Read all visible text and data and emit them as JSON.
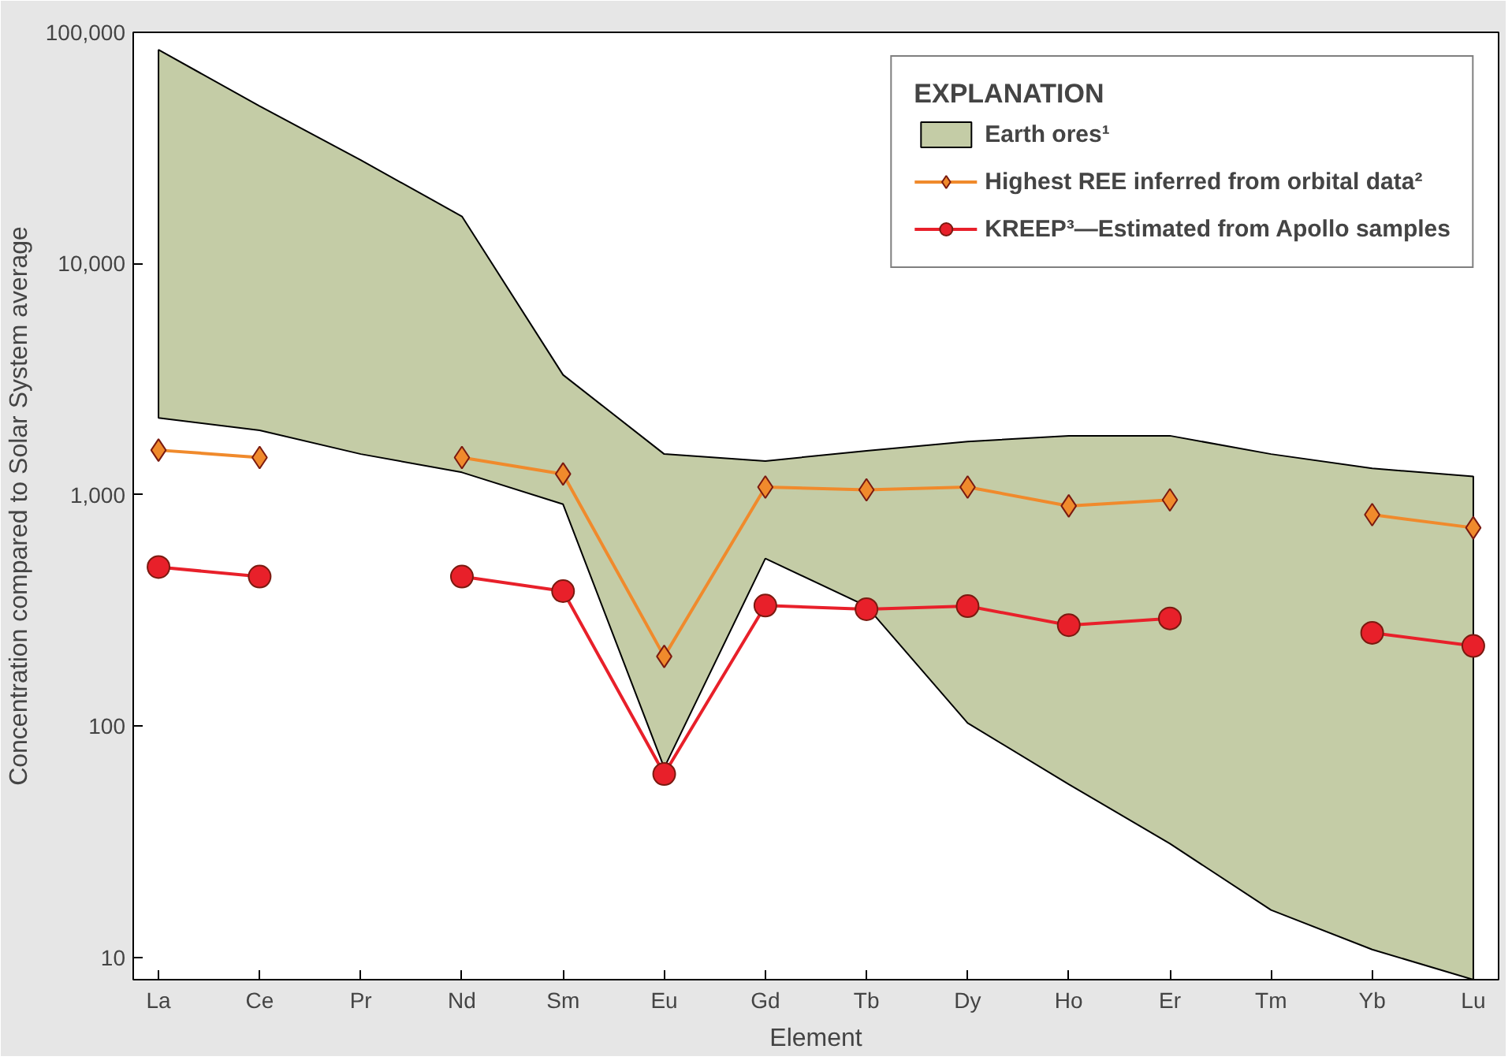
{
  "chart_data": {
    "xlabel": "Element",
    "ylabel": "Concentration compared to Solar System average",
    "legend_title": "EXPLANATION",
    "legend": "top right",
    "grid": false,
    "log": "y",
    "ylim": [
      8,
      100000
    ],
    "type": "line",
    "yticks": [
      {
        "value": 10,
        "label": "10"
      },
      {
        "value": 100,
        "label": "100"
      },
      {
        "value": 1000,
        "label": "1,000"
      },
      {
        "value": 10000,
        "label": "10,000"
      },
      {
        "value": 100000,
        "label": "100,000"
      }
    ],
    "categories": [
      "La",
      "Ce",
      "Pr",
      "Nd",
      "Sm",
      "Eu",
      "Gd",
      "Tb",
      "Dy",
      "Ho",
      "Er",
      "Tm",
      "Yb",
      "Lu"
    ],
    "series": [
      {
        "name": "Earth ores¹",
        "color": "#c4cca6",
        "values": [
          null,
          null,
          null,
          null,
          null,
          null,
          null,
          null,
          null,
          null,
          null,
          null,
          null,
          null
        ],
        "upper": [
          84000,
          48000,
          28000,
          16000,
          3300,
          1500,
          1400,
          1550,
          1700,
          1800,
          1800,
          1500,
          1300,
          1200
        ],
        "lower": [
          2150,
          1900,
          1500,
          1250,
          910,
          66,
          530,
          330,
          103,
          56,
          31,
          16,
          10.8,
          8
        ]
      },
      {
        "name": "Highest REE inferred from orbital data²",
        "color": "#f08a2c",
        "marker": "diamond",
        "values": [
          1560,
          1450,
          null,
          1450,
          1230,
          200,
          1080,
          1050,
          1080,
          895,
          950,
          null,
          820,
          720
        ]
      },
      {
        "name": "KREEP³—Estimated from Apollo samples",
        "color": "#e8202a",
        "marker": "circle",
        "values": [
          487,
          443,
          null,
          443,
          383,
          62,
          332,
          320,
          330,
          273,
          292,
          null,
          253,
          222
        ]
      }
    ]
  }
}
